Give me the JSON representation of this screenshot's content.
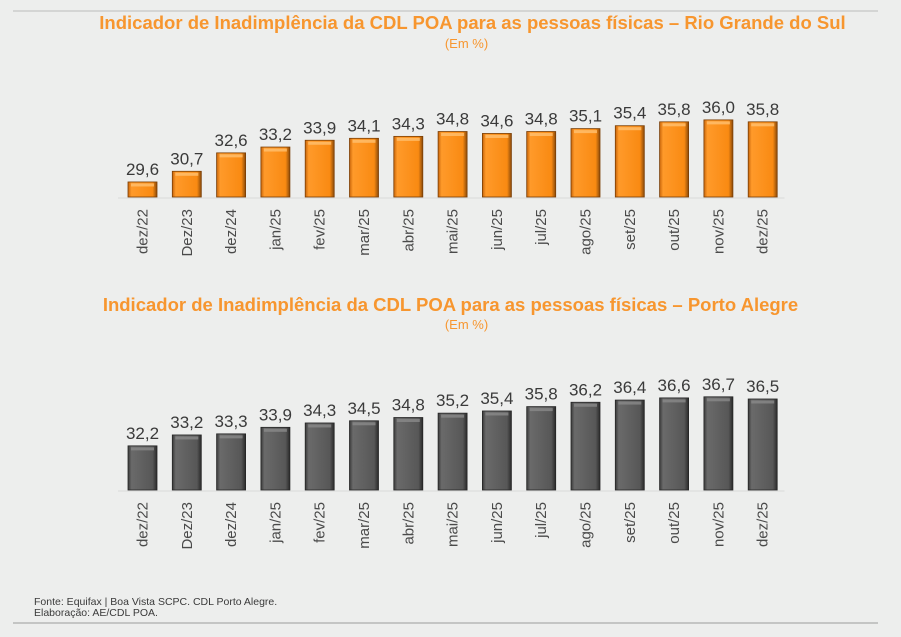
{
  "chart_data": [
    {
      "type": "bar",
      "title": "Indicador de Inadimplência da CDL POA para as pessoas físicas – Rio Grande do Sul",
      "subtitle": "(Em %)",
      "xlabel": "",
      "ylabel": "",
      "categories": [
        "dez/22",
        "Dez/23",
        "dez/24",
        "jan/25",
        "fev/25",
        "mar/25",
        "abr/25",
        "mai/25",
        "jun/25",
        "jul/25",
        "ago/25",
        "set/25",
        "out/25",
        "nov/25",
        "dez/25"
      ],
      "values": [
        29.6,
        30.7,
        32.6,
        33.2,
        33.9,
        34.1,
        34.3,
        34.8,
        34.6,
        34.8,
        35.1,
        35.4,
        35.8,
        36.0,
        35.8
      ],
      "value_labels": [
        "29,6",
        "30,7",
        "32,6",
        "33,2",
        "33,9",
        "34,1",
        "34,3",
        "34,8",
        "34,6",
        "34,8",
        "35,1",
        "35,4",
        "35,8",
        "36,0",
        "35,8"
      ],
      "bar_color": "#f98a12",
      "grid": false,
      "legend": "none"
    },
    {
      "type": "bar",
      "title": "Indicador de Inadimplência da CDL POA para as pessoas físicas – Porto Alegre",
      "subtitle": "(Em %)",
      "xlabel": "",
      "ylabel": "",
      "categories": [
        "dez/22",
        "Dez/23",
        "dez/24",
        "jan/25",
        "fev/25",
        "mar/25",
        "abr/25",
        "mai/25",
        "jun/25",
        "jul/25",
        "ago/25",
        "set/25",
        "out/25",
        "nov/25",
        "dez/25"
      ],
      "values": [
        32.2,
        33.2,
        33.3,
        33.9,
        34.3,
        34.5,
        34.8,
        35.2,
        35.4,
        35.8,
        36.2,
        36.4,
        36.6,
        36.7,
        36.5
      ],
      "value_labels": [
        "32,2",
        "33,2",
        "33,3",
        "33,9",
        "34,3",
        "34,5",
        "34,8",
        "35,2",
        "35,4",
        "35,8",
        "36,2",
        "36,4",
        "36,6",
        "36,7",
        "36,5"
      ],
      "bar_color": "#575757",
      "grid": false,
      "legend": "none"
    }
  ],
  "footer": {
    "source": "Fonte: Equifax | Boa Vista SCPC. CDL Porto Alegre.",
    "elaboration": "Elaboração: AE/CDL POA."
  }
}
